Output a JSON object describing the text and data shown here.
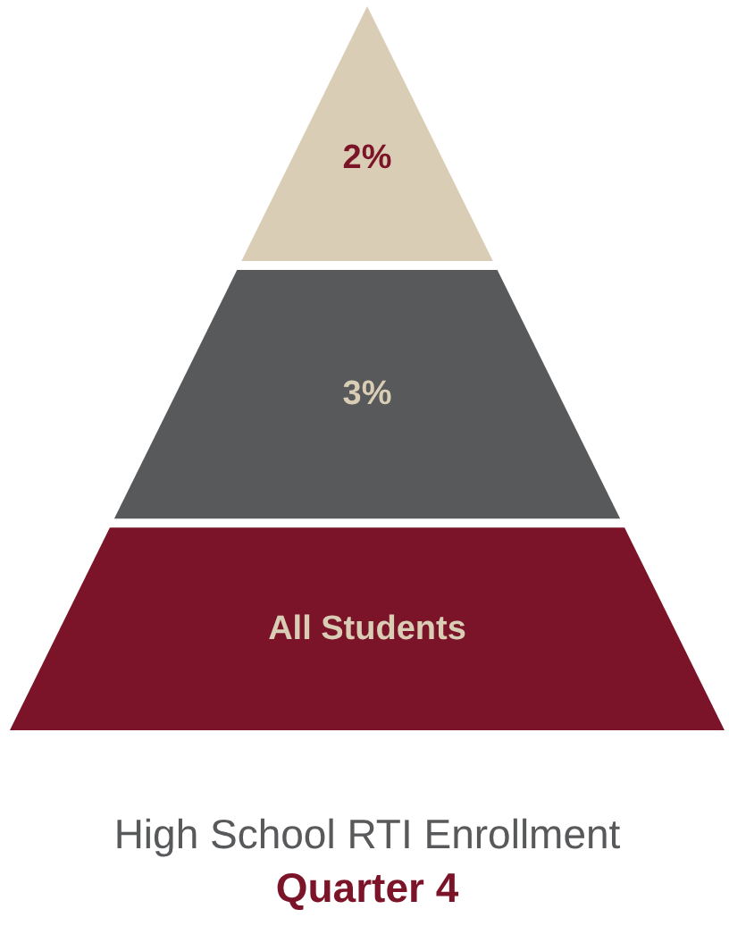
{
  "chart_data": {
    "type": "other",
    "title": "High School RTI Enrollment",
    "subtitle": "Quarter 4",
    "categories": [
      null,
      null,
      null
    ],
    "values": [
      2,
      3,
      null
    ],
    "value_labels": [
      "2%",
      "3%",
      "All Students"
    ],
    "colors": [
      "#dacdb5",
      "#58595b",
      "#7b1428"
    ]
  }
}
